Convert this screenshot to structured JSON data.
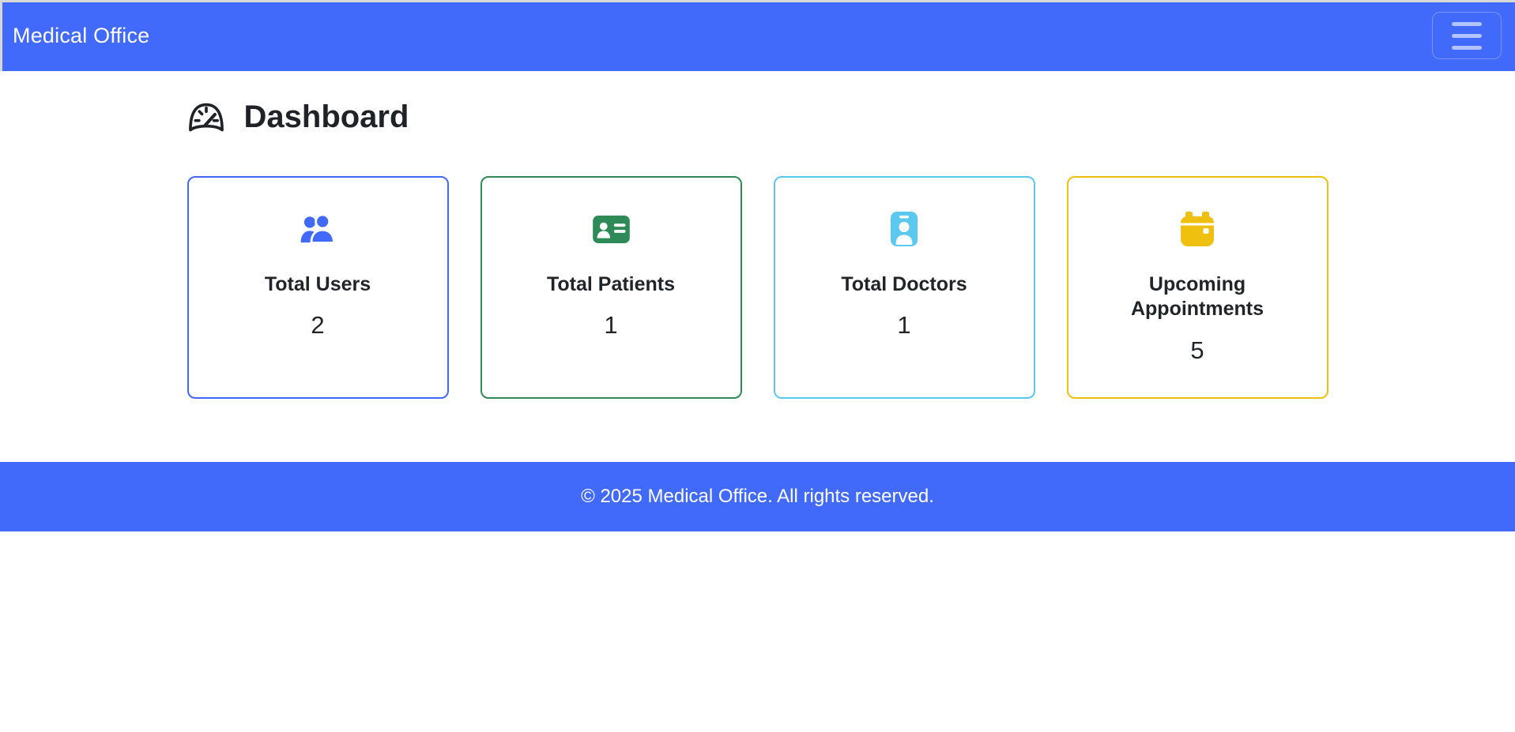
{
  "colors": {
    "primary": "#4169fa",
    "heading_text": "#1f2328",
    "card_users": "#4169fa",
    "card_patients": "#2e8b57",
    "card_doctors": "#5bc8f0",
    "card_appointments": "#f0c011",
    "footer_text": "#ffffff"
  },
  "navbar": {
    "brand": "Medical Office"
  },
  "page": {
    "heading": "Dashboard",
    "heading_icon": "gauge-icon"
  },
  "cards": [
    {
      "id": "total-users",
      "icon": "users-icon",
      "label": "Total Users",
      "value": "2",
      "color": "#4169fa"
    },
    {
      "id": "total-patients",
      "icon": "id-card-icon",
      "label": "Total Patients",
      "value": "1",
      "color": "#2e8b57"
    },
    {
      "id": "total-doctors",
      "icon": "id-badge-icon",
      "label": "Total Doctors",
      "value": "1",
      "color": "#5bc8f0"
    },
    {
      "id": "upcoming-appointments",
      "icon": "calendar-icon",
      "label": "Upcoming Appointments",
      "value": "5",
      "color": "#f0c011"
    }
  ],
  "footer": {
    "text": "© 2025 Medical Office. All rights reserved."
  }
}
